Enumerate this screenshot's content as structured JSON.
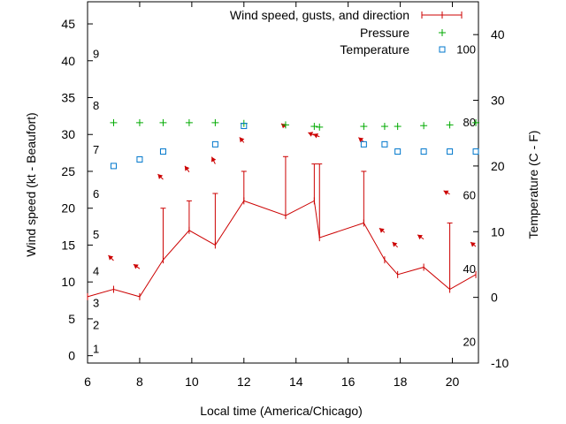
{
  "chart_data": {
    "type": "line",
    "xlabel": "Local time (America/Chicago)",
    "ylabel": "Wind speed (kt - Beaufort)",
    "y2label": "Temperature (C - F)",
    "xlim": [
      6,
      21
    ],
    "ylim": [
      -1,
      48
    ],
    "y2lim": [
      -10,
      45
    ],
    "x_ticks": [
      6,
      8,
      10,
      12,
      14,
      16,
      18,
      20
    ],
    "y_ticks": [
      0,
      5,
      10,
      15,
      20,
      25,
      30,
      35,
      40,
      45
    ],
    "y2_ticks": [
      -10,
      0,
      10,
      20,
      30,
      40
    ],
    "beaufort_labels": [
      {
        "label": "1",
        "value": 1.0
      },
      {
        "label": "2",
        "value": 4.2
      },
      {
        "label": "3",
        "value": 7.2
      },
      {
        "label": "4",
        "value": 11.5
      },
      {
        "label": "5",
        "value": 16.5
      },
      {
        "label": "6",
        "value": 22.0
      },
      {
        "label": "7",
        "value": 28.0
      },
      {
        "label": "8",
        "value": 34.0
      },
      {
        "label": "9",
        "value": 41.0
      }
    ],
    "fahrenheit_labels": [
      {
        "label": "20",
        "value": -6.7
      },
      {
        "label": "40",
        "value": 4.4
      },
      {
        "label": "60",
        "value": 15.6
      },
      {
        "label": "80",
        "value": 26.7
      },
      {
        "label": "100",
        "value": 37.8
      }
    ],
    "legend": {
      "wind": "Wind speed, gusts, and direction",
      "pressure": "Pressure",
      "temperature": "Temperature",
      "placement": "top-right"
    },
    "series": [
      {
        "name": "Wind speed, gusts, and direction",
        "color": "#cc0000",
        "x": [
          6.0,
          7.0,
          8.0,
          8.9,
          9.9,
          10.9,
          12.0,
          13.6,
          14.7,
          14.9,
          16.6,
          17.4,
          17.9,
          18.9,
          19.9,
          20.9
        ],
        "values": [
          8,
          9,
          8,
          13,
          17,
          15,
          21,
          19,
          21,
          16,
          18,
          13,
          11,
          12,
          9,
          11
        ],
        "gusts": [
          null,
          null,
          null,
          20,
          21,
          22,
          25,
          27,
          26,
          26,
          25,
          null,
          null,
          null,
          18,
          null
        ]
      },
      {
        "name": "Pressure",
        "color": "#00aa00",
        "x": [
          7.0,
          8.0,
          8.9,
          9.9,
          10.9,
          12.0,
          13.6,
          14.7,
          14.9,
          16.6,
          17.4,
          17.9,
          18.9,
          19.9,
          20.9
        ],
        "values": [
          31.6,
          31.6,
          31.6,
          31.6,
          31.6,
          31.5,
          31.3,
          31.1,
          31.0,
          31.1,
          31.1,
          31.1,
          31.2,
          31.3,
          31.6
        ]
      },
      {
        "name": "Temperature",
        "color": "#0077cc",
        "x": [
          7.0,
          8.0,
          8.9,
          10.9,
          12.0,
          16.6,
          17.4,
          17.9,
          18.9,
          19.9,
          20.9
        ],
        "values": [
          20.0,
          21.0,
          22.2,
          23.3,
          26.1,
          23.3,
          23.3,
          22.2,
          22.2,
          22.2,
          22.2
        ]
      }
    ],
    "wind_direction_arrows": [
      {
        "x": 7.0,
        "y": 12.9,
        "dx": -6,
        "dy": -6
      },
      {
        "x": 8.0,
        "y": 11.8,
        "dx": -7,
        "dy": -5
      },
      {
        "x": 8.9,
        "y": 23.9,
        "dx": -6,
        "dy": -6
      },
      {
        "x": 9.9,
        "y": 24.9,
        "dx": -5,
        "dy": -7
      },
      {
        "x": 10.9,
        "y": 26.0,
        "dx": -4,
        "dy": -8
      },
      {
        "x": 12.0,
        "y": 28.9,
        "dx": -5,
        "dy": -6
      },
      {
        "x": 13.6,
        "y": 31.0,
        "dx": -5,
        "dy": -4
      },
      {
        "x": 14.7,
        "y": 29.9,
        "dx": -7,
        "dy": -3
      },
      {
        "x": 14.9,
        "y": 29.7,
        "dx": -7,
        "dy": -3
      },
      {
        "x": 16.6,
        "y": 29.0,
        "dx": -6,
        "dy": -5
      },
      {
        "x": 17.4,
        "y": 16.7,
        "dx": -6,
        "dy": -5
      },
      {
        "x": 17.9,
        "y": 14.7,
        "dx": -6,
        "dy": -6
      },
      {
        "x": 18.9,
        "y": 15.8,
        "dx": -7,
        "dy": -5
      },
      {
        "x": 19.9,
        "y": 21.9,
        "dx": -7,
        "dy": -4
      },
      {
        "x": 20.9,
        "y": 14.8,
        "dx": -6,
        "dy": -5
      }
    ]
  }
}
